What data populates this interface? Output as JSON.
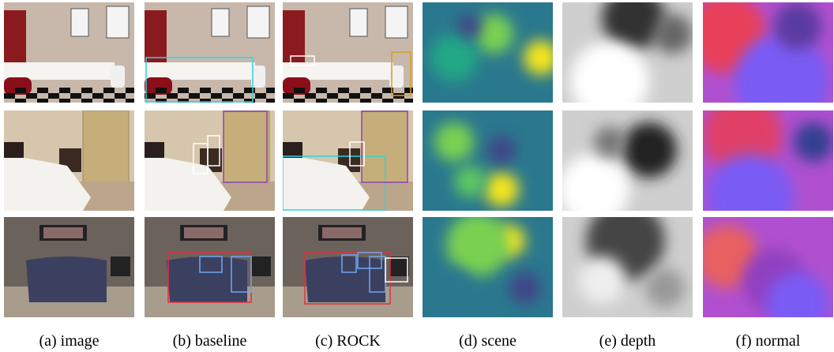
{
  "captions": [
    "(a) image",
    "(b) baseline",
    "(c) ROCK",
    "(d) scene",
    "(e) depth",
    "(f) normal"
  ]
}
